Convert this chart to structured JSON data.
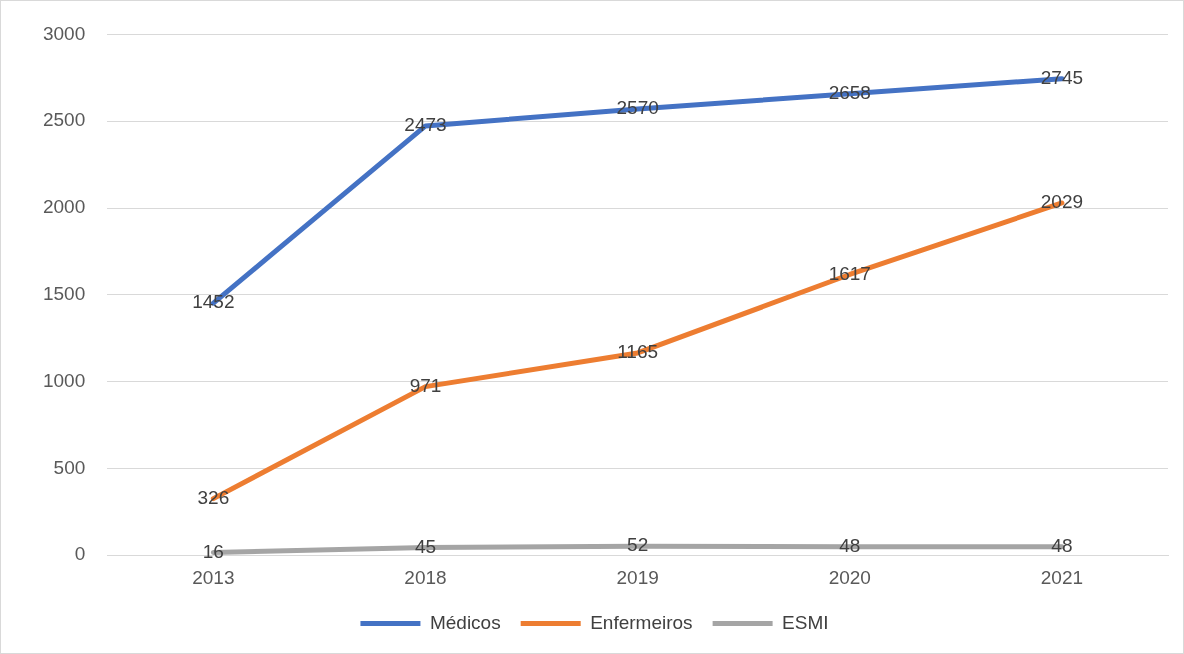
{
  "chart_data": {
    "type": "line",
    "categories": [
      "2013",
      "2018",
      "2019",
      "2020",
      "2021"
    ],
    "series": [
      {
        "name": "Médicos",
        "color": "#4472c4",
        "values": [
          1452,
          2473,
          2570,
          2658,
          2745
        ]
      },
      {
        "name": "Enfermeiros",
        "color": "#ed7d31",
        "values": [
          326,
          971,
          1165,
          1617,
          2029
        ]
      },
      {
        "name": "ESMI",
        "color": "#a5a5a5",
        "values": [
          16,
          45,
          52,
          48,
          48
        ]
      }
    ],
    "ylim": [
      0,
      3000
    ],
    "yticks": [
      0,
      500,
      1000,
      1500,
      2000,
      2500,
      3000
    ],
    "grid": "y",
    "legend": "bottom",
    "data_labels": true,
    "marker": "none",
    "line_style": "solid"
  }
}
